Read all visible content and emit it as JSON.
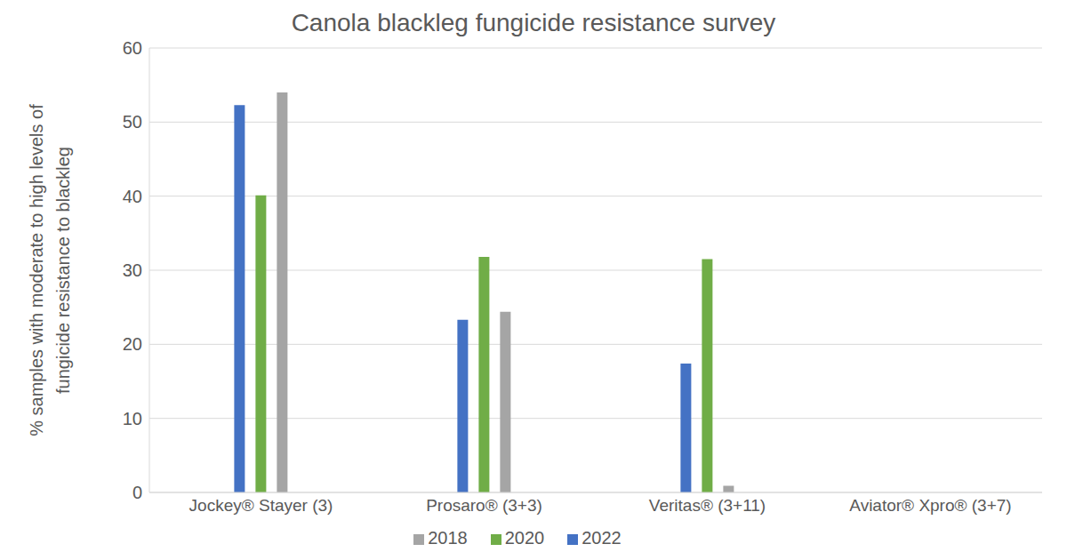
{
  "chart_data": {
    "type": "bar",
    "title": "Canola blackleg fungicide resistance survey",
    "y_label": "% samples with moderate to high levels of\nfungicide resistance to blackleg",
    "categories": [
      "Jockey® Stayer (3)",
      "Prosaro® (3+3)",
      "Veritas® (3+11)",
      "Aviator® Xpro® (3+7)"
    ],
    "series": [
      {
        "name": "2022",
        "color": "#4472c4",
        "values": [
          52.3,
          23.3,
          17.4,
          0
        ]
      },
      {
        "name": "2020",
        "color": "#70ad47",
        "values": [
          40.1,
          31.8,
          31.5,
          0
        ]
      },
      {
        "name": "2018",
        "color": "#a5a5a5",
        "values": [
          54.0,
          24.4,
          0.9,
          0
        ]
      }
    ],
    "ylim": [
      0,
      60
    ],
    "yticks": [
      0,
      10,
      20,
      30,
      40,
      50,
      60
    ],
    "grid": true,
    "legend": "bottom"
  }
}
